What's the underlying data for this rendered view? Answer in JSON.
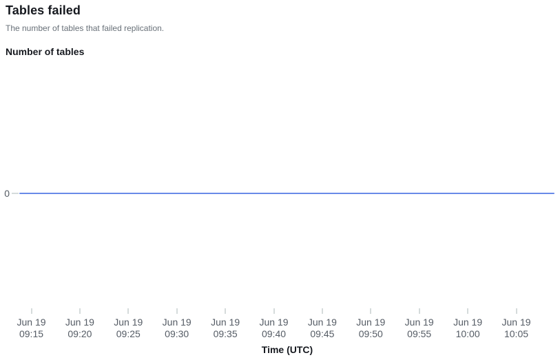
{
  "header": {
    "title": "Tables failed",
    "subtitle": "The number of tables that failed replication."
  },
  "chart": {
    "y_axis_title": "Number of tables",
    "x_axis_title": "Time (UTC)",
    "y_tick_label": "0",
    "x_ticks": [
      {
        "date": "Jun 19",
        "time": "09:15"
      },
      {
        "date": "Jun 19",
        "time": "09:20"
      },
      {
        "date": "Jun 19",
        "time": "09:25"
      },
      {
        "date": "Jun 19",
        "time": "09:30"
      },
      {
        "date": "Jun 19",
        "time": "09:35"
      },
      {
        "date": "Jun 19",
        "time": "09:40"
      },
      {
        "date": "Jun 19",
        "time": "09:45"
      },
      {
        "date": "Jun 19",
        "time": "09:50"
      },
      {
        "date": "Jun 19",
        "time": "09:55"
      },
      {
        "date": "Jun 19",
        "time": "10:00"
      },
      {
        "date": "Jun 19",
        "time": "10:05"
      }
    ]
  },
  "chart_data": {
    "type": "line",
    "title": "Tables failed",
    "subtitle": "The number of tables that failed replication.",
    "xlabel": "Time (UTC)",
    "ylabel": "Number of tables",
    "categories": [
      "Jun 19 09:15",
      "Jun 19 09:20",
      "Jun 19 09:25",
      "Jun 19 09:30",
      "Jun 19 09:35",
      "Jun 19 09:40",
      "Jun 19 09:45",
      "Jun 19 09:50",
      "Jun 19 09:55",
      "Jun 19 10:00",
      "Jun 19 10:05"
    ],
    "series": [
      {
        "name": "Tables failed",
        "color": "#688ae8",
        "values": [
          0,
          0,
          0,
          0,
          0,
          0,
          0,
          0,
          0,
          0,
          0
        ]
      }
    ],
    "y_ticks": [
      0
    ],
    "ylim_visible_tick_only": true,
    "grid": false,
    "legend": "none"
  }
}
